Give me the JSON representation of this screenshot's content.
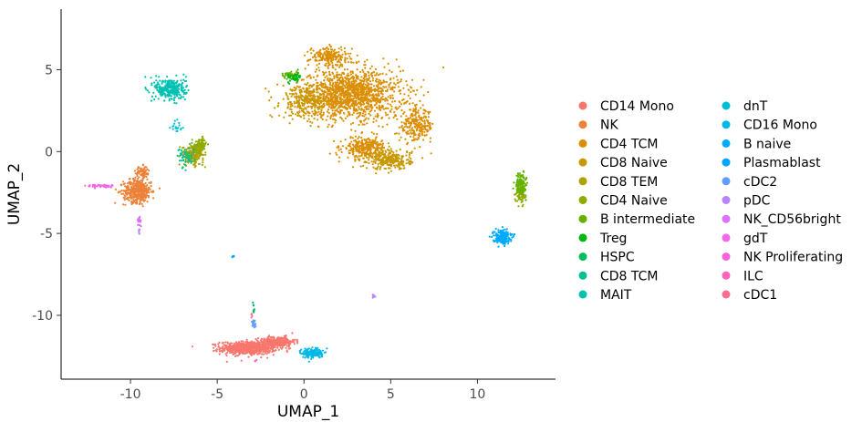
{
  "chart_data": {
    "type": "scatter",
    "xlabel": "UMAP_1",
    "ylabel": "UMAP_2",
    "xlim": [
      -14,
      14.5
    ],
    "ylim": [
      -13.9,
      8.7
    ],
    "x_ticks": [
      -10,
      -5,
      0,
      5,
      10
    ],
    "x_tick_labels": [
      "-10",
      "-5",
      "0",
      "5",
      "10"
    ],
    "y_ticks": [
      -10,
      -5,
      0,
      5
    ],
    "y_tick_labels": [
      "-10",
      "-5",
      "0",
      "5"
    ],
    "grid": false,
    "legend_position": "right",
    "legend_columns": 2,
    "series": [
      {
        "name": "CD14 Mono",
        "color": "#F8766D",
        "clusters": [
          [
            -3.2,
            -12.0,
            1.6,
            0.4,
            700
          ],
          [
            -1.5,
            -11.6,
            1.0,
            0.3,
            250
          ]
        ]
      },
      {
        "name": "NK",
        "color": "#EC8239",
        "clusters": [
          [
            -9.6,
            -2.4,
            0.8,
            0.7,
            420
          ],
          [
            -9.3,
            -1.3,
            0.4,
            0.4,
            80
          ]
        ]
      },
      {
        "name": "CD4 TCM",
        "color": "#DB8E00",
        "clusters": [
          [
            2.6,
            3.5,
            3.0,
            1.5,
            1400
          ],
          [
            6.5,
            1.6,
            1.0,
            1.0,
            250
          ],
          [
            3.5,
            0.2,
            1.2,
            0.7,
            300
          ],
          [
            1.5,
            5.8,
            1.2,
            0.6,
            200
          ]
        ]
      },
      {
        "name": "CD8 Naive",
        "color": "#C79800",
        "clusters": [
          [
            5.0,
            -0.5,
            1.2,
            0.6,
            250
          ],
          [
            0.0,
            3.0,
            1.3,
            1.0,
            200
          ]
        ]
      },
      {
        "name": "CD8 TEM",
        "color": "#AEA200",
        "clusters": [
          [
            -6.4,
            -0.2,
            0.6,
            0.6,
            220
          ]
        ]
      },
      {
        "name": "CD4 Naive",
        "color": "#8FAA00",
        "clusters": [
          [
            -6.0,
            0.4,
            0.4,
            0.4,
            90
          ],
          [
            12.5,
            -2.5,
            0.3,
            0.6,
            70
          ]
        ]
      },
      {
        "name": "B intermediate",
        "color": "#64B200",
        "clusters": [
          [
            12.5,
            -2.0,
            0.3,
            0.7,
            120
          ],
          [
            -0.9,
            4.7,
            0.4,
            0.2,
            40
          ]
        ]
      },
      {
        "name": "Treg",
        "color": "#00B712",
        "clusters": [
          [
            -0.5,
            4.5,
            0.4,
            0.3,
            50
          ]
        ]
      },
      {
        "name": "HSPC",
        "color": "#00BD5C",
        "clusters": [
          [
            -2.9,
            -9.6,
            0.05,
            0.4,
            10
          ]
        ]
      },
      {
        "name": "CD8 TCM",
        "color": "#00C08D",
        "clusters": [
          [
            -6.8,
            -0.3,
            0.5,
            0.6,
            50
          ]
        ]
      },
      {
        "name": "MAIT",
        "color": "#00C1B2",
        "clusters": [
          [
            -7.7,
            3.8,
            0.9,
            0.7,
            300
          ]
        ]
      },
      {
        "name": "dnT",
        "color": "#00BFD4",
        "clusters": [
          [
            -7.3,
            1.5,
            0.3,
            0.4,
            20
          ]
        ]
      },
      {
        "name": "CD16 Mono",
        "color": "#00B8E7",
        "clusters": [
          [
            0.5,
            -12.3,
            0.6,
            0.3,
            160
          ]
        ]
      },
      {
        "name": "B naive",
        "color": "#00ABFD",
        "clusters": [
          [
            11.4,
            -5.2,
            0.5,
            0.4,
            220
          ]
        ]
      },
      {
        "name": "Plasmablast",
        "color": "#00A5FF",
        "clusters": [
          [
            -4.1,
            -6.4,
            0.08,
            0.05,
            10
          ]
        ]
      },
      {
        "name": "cDC2",
        "color": "#619CFF",
        "clusters": [
          [
            -2.9,
            -10.5,
            0.1,
            0.3,
            20
          ]
        ]
      },
      {
        "name": "pDC",
        "color": "#B983FF",
        "clusters": [
          [
            4.0,
            -8.8,
            0.1,
            0.08,
            12
          ],
          [
            -9.5,
            -4.9,
            0.05,
            0.2,
            8
          ]
        ]
      },
      {
        "name": "NK_CD56bright",
        "color": "#DB72FB",
        "clusters": [
          [
            -9.5,
            -4.2,
            0.12,
            0.4,
            20
          ]
        ]
      },
      {
        "name": "gdT",
        "color": "#EF67EB",
        "clusters": [
          [
            -11.5,
            -2.1,
            0.5,
            0.1,
            40
          ]
        ]
      },
      {
        "name": "NK Proliferating",
        "color": "#FA62DB",
        "clusters": [
          [
            -12.2,
            -2.1,
            0.3,
            0.08,
            15
          ]
        ]
      },
      {
        "name": "ILC",
        "color": "#FF62BC",
        "clusters": [
          [
            -2.8,
            -12.8,
            0.1,
            0.1,
            4
          ]
        ]
      },
      {
        "name": "cDC1",
        "color": "#FF6C91",
        "clusters": [
          [
            -3.0,
            -10.0,
            0.05,
            0.1,
            4
          ]
        ]
      }
    ]
  }
}
